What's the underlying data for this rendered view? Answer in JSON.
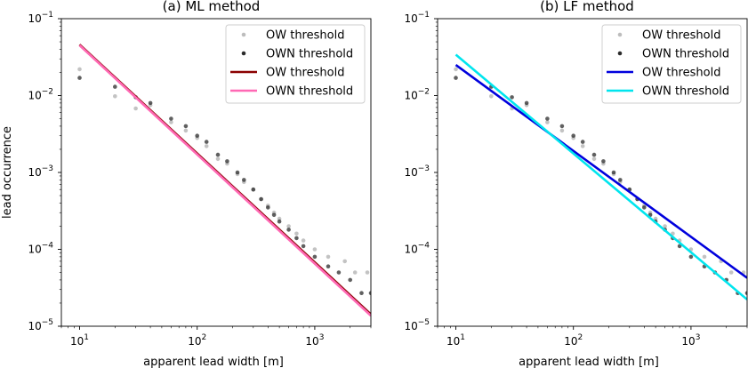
{
  "chart_data": [
    {
      "type": "scatter",
      "title": "(a) ML method",
      "xlabel": "apparent lead width [m]",
      "ylabel": "lead occurrence",
      "xscale": "log",
      "yscale": "log",
      "xlim": [
        7,
        3000
      ],
      "ylim": [
        1e-05,
        0.1
      ],
      "x_ticks": [
        {
          "value": 10,
          "base": "10",
          "exp": "1"
        },
        {
          "value": 100,
          "base": "10",
          "exp": "2"
        },
        {
          "value": 1000,
          "base": "10",
          "exp": "3"
        }
      ],
      "y_ticks": [
        {
          "value": 1e-05,
          "base": "10",
          "exp": "−5"
        },
        {
          "value": 0.0001,
          "base": "10",
          "exp": "−4"
        },
        {
          "value": 0.001,
          "base": "10",
          "exp": "−3"
        },
        {
          "value": 0.01,
          "base": "10",
          "exp": "−2"
        },
        {
          "value": 0.1,
          "base": "10",
          "exp": "−1"
        }
      ],
      "legend_position": "top-right",
      "series": [
        {
          "name": "OW threshold",
          "kind": "points",
          "color": "#bdbdbd",
          "points": [
            [
              10,
              0.022
            ],
            [
              20,
              0.0098
            ],
            [
              30,
              0.0068
            ],
            [
              40,
              0.0075
            ],
            [
              60,
              0.0045
            ],
            [
              80,
              0.0035
            ],
            [
              100,
              0.0028
            ],
            [
              120,
              0.0022
            ],
            [
              150,
              0.0015
            ],
            [
              180,
              0.0013
            ],
            [
              220,
              0.00095
            ],
            [
              250,
              0.00075
            ],
            [
              300,
              0.0006
            ],
            [
              350,
              0.00045
            ],
            [
              400,
              0.00037
            ],
            [
              450,
              0.0003
            ],
            [
              500,
              0.00025
            ],
            [
              600,
              0.0002
            ],
            [
              700,
              0.00016
            ],
            [
              800,
              0.00013
            ],
            [
              1000,
              0.0001
            ],
            [
              1300,
              8e-05
            ],
            [
              1800,
              7e-05
            ],
            [
              2200,
              5e-05
            ],
            [
              2800,
              5e-05
            ]
          ]
        },
        {
          "name": "OWN threshold",
          "kind": "points",
          "color": "#2b2b2b",
          "points": [
            [
              10,
              0.017
            ],
            [
              20,
              0.013
            ],
            [
              30,
              0.0095
            ],
            [
              40,
              0.008
            ],
            [
              60,
              0.005
            ],
            [
              80,
              0.004
            ],
            [
              100,
              0.003
            ],
            [
              120,
              0.0025
            ],
            [
              150,
              0.0017
            ],
            [
              180,
              0.0014
            ],
            [
              220,
              0.001
            ],
            [
              250,
              0.0008
            ],
            [
              300,
              0.0006
            ],
            [
              350,
              0.00045
            ],
            [
              400,
              0.00035
            ],
            [
              450,
              0.00028
            ],
            [
              500,
              0.00023
            ],
            [
              600,
              0.00018
            ],
            [
              700,
              0.00014
            ],
            [
              800,
              0.00011
            ],
            [
              1000,
              8e-05
            ],
            [
              1300,
              6e-05
            ],
            [
              1600,
              5e-05
            ],
            [
              2000,
              4e-05
            ],
            [
              2500,
              2.7e-05
            ],
            [
              3000,
              2.7e-05
            ]
          ]
        },
        {
          "name": "OW threshold",
          "kind": "line",
          "color": "#8b0000",
          "points": [
            [
              10,
              0.046
            ],
            [
              3000,
              1.43e-05
            ]
          ]
        },
        {
          "name": "OWN threshold",
          "kind": "line",
          "color": "#ff69b4",
          "points": [
            [
              10,
              0.045
            ],
            [
              3000,
              1.37e-05
            ]
          ]
        }
      ]
    },
    {
      "type": "scatter",
      "title": "(b) LF method",
      "xlabel": "apparent lead width [m]",
      "ylabel": "",
      "xscale": "log",
      "yscale": "log",
      "xlim": [
        7,
        3000
      ],
      "ylim": [
        1e-05,
        0.1
      ],
      "x_ticks": [
        {
          "value": 10,
          "base": "10",
          "exp": "1"
        },
        {
          "value": 100,
          "base": "10",
          "exp": "2"
        },
        {
          "value": 1000,
          "base": "10",
          "exp": "3"
        }
      ],
      "y_ticks": [
        {
          "value": 1e-05,
          "base": "10",
          "exp": "−5"
        },
        {
          "value": 0.0001,
          "base": "10",
          "exp": "−4"
        },
        {
          "value": 0.001,
          "base": "10",
          "exp": "−3"
        },
        {
          "value": 0.01,
          "base": "10",
          "exp": "−2"
        },
        {
          "value": 0.1,
          "base": "10",
          "exp": "−1"
        }
      ],
      "legend_position": "top-right",
      "series": [
        {
          "name": "OW threshold",
          "kind": "points",
          "color": "#bdbdbd",
          "points": [
            [
              10,
              0.022
            ],
            [
              20,
              0.0098
            ],
            [
              30,
              0.0068
            ],
            [
              40,
              0.0075
            ],
            [
              60,
              0.0045
            ],
            [
              80,
              0.0035
            ],
            [
              100,
              0.0028
            ],
            [
              120,
              0.0022
            ],
            [
              150,
              0.0015
            ],
            [
              180,
              0.0013
            ],
            [
              220,
              0.00095
            ],
            [
              250,
              0.00075
            ],
            [
              300,
              0.0006
            ],
            [
              350,
              0.00045
            ],
            [
              400,
              0.00037
            ],
            [
              450,
              0.0003
            ],
            [
              500,
              0.00025
            ],
            [
              600,
              0.0002
            ],
            [
              700,
              0.00016
            ],
            [
              800,
              0.00013
            ],
            [
              1000,
              0.0001
            ],
            [
              1300,
              8e-05
            ],
            [
              1800,
              7e-05
            ],
            [
              2200,
              5e-05
            ],
            [
              2800,
              5e-05
            ]
          ]
        },
        {
          "name": "OWN threshold",
          "kind": "points",
          "color": "#2b2b2b",
          "points": [
            [
              10,
              0.017
            ],
            [
              20,
              0.013
            ],
            [
              30,
              0.0095
            ],
            [
              40,
              0.008
            ],
            [
              60,
              0.005
            ],
            [
              80,
              0.004
            ],
            [
              100,
              0.003
            ],
            [
              120,
              0.0025
            ],
            [
              150,
              0.0017
            ],
            [
              180,
              0.0014
            ],
            [
              220,
              0.001
            ],
            [
              250,
              0.0008
            ],
            [
              300,
              0.0006
            ],
            [
              350,
              0.00045
            ],
            [
              400,
              0.00035
            ],
            [
              450,
              0.00028
            ],
            [
              500,
              0.00023
            ],
            [
              600,
              0.00018
            ],
            [
              700,
              0.00014
            ],
            [
              800,
              0.00011
            ],
            [
              1000,
              8e-05
            ],
            [
              1300,
              6e-05
            ],
            [
              1600,
              5e-05
            ],
            [
              2000,
              4e-05
            ],
            [
              2500,
              2.7e-05
            ],
            [
              3000,
              2.7e-05
            ]
          ]
        },
        {
          "name": "OW threshold",
          "kind": "line",
          "color": "#0000dd",
          "points": [
            [
              10,
              0.025
            ],
            [
              3000,
              4.25e-05
            ]
          ]
        },
        {
          "name": "OWN threshold",
          "kind": "line",
          "color": "#00e5ee",
          "points": [
            [
              10,
              0.034
            ],
            [
              3000,
              2.23e-05
            ]
          ]
        }
      ]
    }
  ]
}
